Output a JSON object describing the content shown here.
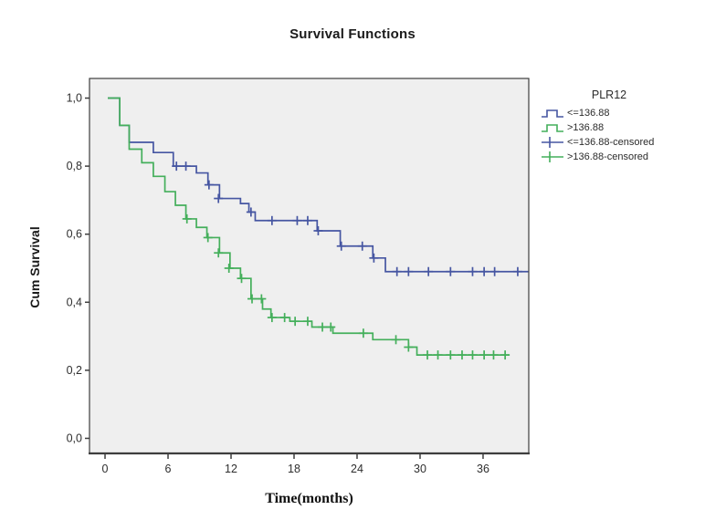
{
  "page": {
    "background": "#ffffff"
  },
  "chart_data": {
    "type": "line",
    "subtype": "kaplan_meier_step",
    "title": "Survival Functions",
    "xlabel": "Time(months)",
    "ylabel": "Cum Survival",
    "x_ticks": [
      0,
      6,
      12,
      18,
      24,
      30,
      36
    ],
    "y_tick_values": [
      0.0,
      0.2,
      0.4,
      0.6,
      0.8,
      1.0
    ],
    "y_tick_labels": [
      "0,0",
      "0,2",
      "0,4",
      "0,6",
      "0,8",
      "1,0"
    ],
    "xlim": [
      -1.48,
      40.35
    ],
    "ylim": [
      -0.0443,
      1.0577
    ],
    "grid": false,
    "plot_bg": "#efefef",
    "frame_color": "#3d3d3d",
    "tick_text_color": "#2e2e2e",
    "legend": {
      "title": "PLR12",
      "position": "right",
      "entries": [
        {
          "label": "<=136.88",
          "symbol": "step-line",
          "color": "#4656A2"
        },
        {
          "label": ">136.88",
          "symbol": "step-line",
          "color": "#44AF5B"
        },
        {
          "label": "<=136.88-censored",
          "symbol": "plus-line",
          "color": "#4656A2"
        },
        {
          "label": ">136.88-censored",
          "symbol": "plus-line",
          "color": "#44AF5B"
        }
      ]
    },
    "series": [
      {
        "name": "<=136.88",
        "color": "#4656A2",
        "end_t": 40.3,
        "steps": [
          [
            0.26,
            1.0
          ],
          [
            1.4,
            0.92
          ],
          [
            2.3,
            0.87
          ],
          [
            4.6,
            0.84
          ],
          [
            6.5,
            0.8
          ],
          [
            8.7,
            0.78
          ],
          [
            9.8,
            0.745
          ],
          [
            10.9,
            0.705
          ],
          [
            12.9,
            0.69
          ],
          [
            13.7,
            0.665
          ],
          [
            14.3,
            0.64
          ],
          [
            20.2,
            0.61
          ],
          [
            22.4,
            0.565
          ],
          [
            25.5,
            0.53
          ],
          [
            26.7,
            0.49
          ]
        ],
        "censored": [
          [
            6.8,
            0.8
          ],
          [
            7.7,
            0.8
          ],
          [
            9.9,
            0.745
          ],
          [
            10.8,
            0.705
          ],
          [
            13.9,
            0.665
          ],
          [
            15.9,
            0.64
          ],
          [
            18.3,
            0.64
          ],
          [
            19.3,
            0.64
          ],
          [
            20.3,
            0.61
          ],
          [
            22.5,
            0.565
          ],
          [
            24.5,
            0.565
          ],
          [
            25.6,
            0.53
          ],
          [
            27.8,
            0.49
          ],
          [
            28.9,
            0.49
          ],
          [
            30.8,
            0.49
          ],
          [
            32.9,
            0.49
          ],
          [
            35.0,
            0.49
          ],
          [
            36.1,
            0.49
          ],
          [
            37.1,
            0.49
          ],
          [
            39.3,
            0.49
          ]
        ]
      },
      {
        "name": ">136.88",
        "color": "#44AF5B",
        "end_t": 38.5,
        "steps": [
          [
            0.26,
            1.0
          ],
          [
            1.4,
            0.92
          ],
          [
            2.3,
            0.85
          ],
          [
            3.5,
            0.81
          ],
          [
            4.6,
            0.77
          ],
          [
            5.7,
            0.725
          ],
          [
            6.7,
            0.685
          ],
          [
            7.7,
            0.645
          ],
          [
            8.7,
            0.62
          ],
          [
            9.7,
            0.59
          ],
          [
            10.9,
            0.545
          ],
          [
            11.9,
            0.5
          ],
          [
            12.9,
            0.47
          ],
          [
            13.9,
            0.41
          ],
          [
            15.0,
            0.38
          ],
          [
            15.8,
            0.355
          ],
          [
            17.6,
            0.344
          ],
          [
            19.7,
            0.327
          ],
          [
            21.7,
            0.309
          ],
          [
            25.5,
            0.29
          ],
          [
            28.9,
            0.268
          ],
          [
            29.7,
            0.245
          ]
        ],
        "censored": [
          [
            7.8,
            0.645
          ],
          [
            9.8,
            0.59
          ],
          [
            10.8,
            0.545
          ],
          [
            11.8,
            0.5
          ],
          [
            13.0,
            0.47
          ],
          [
            14.0,
            0.41
          ],
          [
            14.9,
            0.41
          ],
          [
            15.9,
            0.355
          ],
          [
            17.1,
            0.355
          ],
          [
            18.1,
            0.344
          ],
          [
            19.3,
            0.344
          ],
          [
            20.7,
            0.327
          ],
          [
            21.5,
            0.327
          ],
          [
            24.6,
            0.309
          ],
          [
            27.7,
            0.29
          ],
          [
            28.9,
            0.268
          ],
          [
            30.7,
            0.245
          ],
          [
            31.7,
            0.245
          ],
          [
            32.9,
            0.245
          ],
          [
            34.0,
            0.245
          ],
          [
            35.0,
            0.245
          ],
          [
            36.1,
            0.245
          ],
          [
            37.0,
            0.245
          ],
          [
            38.1,
            0.245
          ]
        ]
      }
    ]
  }
}
